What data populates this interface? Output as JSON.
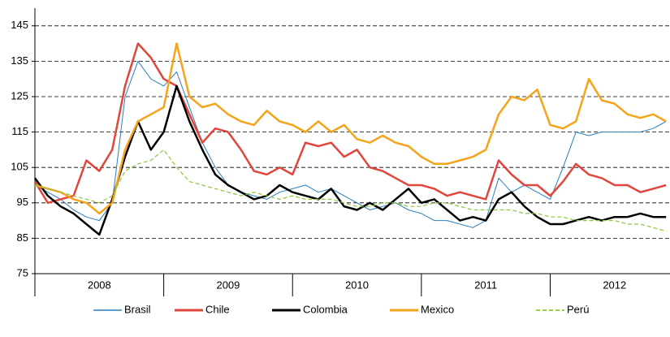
{
  "chart_data": {
    "type": "line",
    "x": [
      2008.0,
      2008.1,
      2008.2,
      2008.3,
      2008.4,
      2008.5,
      2008.6,
      2008.7,
      2008.8,
      2008.9,
      2009.0,
      2009.1,
      2009.2,
      2009.3,
      2009.4,
      2009.5,
      2009.6,
      2009.7,
      2009.8,
      2009.9,
      2010.0,
      2010.1,
      2010.2,
      2010.3,
      2010.4,
      2010.5,
      2010.6,
      2010.7,
      2010.8,
      2010.9,
      2011.0,
      2011.1,
      2011.2,
      2011.3,
      2011.4,
      2011.5,
      2011.6,
      2011.7,
      2011.8,
      2011.9,
      2012.0,
      2012.1,
      2012.2,
      2012.3,
      2012.4,
      2012.5,
      2012.6,
      2012.7,
      2012.8,
      2012.9
    ],
    "xlim": [
      2008,
      2012.93
    ],
    "xticks": [
      {
        "value": 2008.5,
        "label": "2008"
      },
      {
        "value": 2009.5,
        "label": "2009"
      },
      {
        "value": 2010.5,
        "label": "2010"
      },
      {
        "value": 2011.5,
        "label": "2011"
      },
      {
        "value": 2012.5,
        "label": "2012"
      }
    ],
    "ylim": [
      75,
      150
    ],
    "yticks": [
      75,
      85,
      95,
      105,
      115,
      125,
      135,
      145
    ],
    "grid": true,
    "legend": "bottom",
    "series": [
      {
        "name": "Brasil",
        "color": "#2a7fc0",
        "width": 1,
        "dashed": false,
        "values": [
          100,
          98,
          96,
          93,
          91,
          90,
          95,
          125,
          135,
          130,
          128,
          132,
          122,
          112,
          105,
          100,
          98,
          97,
          96,
          98,
          99,
          100,
          98,
          99,
          97,
          95,
          93,
          94,
          95,
          93,
          92,
          90,
          90,
          89,
          88,
          90,
          102,
          98,
          100,
          98,
          96,
          105,
          115,
          114,
          115,
          115,
          115,
          115,
          116,
          118
        ]
      },
      {
        "name": "Chile",
        "color": "#e0463c",
        "width": 2.5,
        "dashed": false,
        "values": [
          101,
          95,
          96,
          97,
          107,
          104,
          110,
          128,
          140,
          136,
          130,
          128,
          120,
          112,
          116,
          115,
          110,
          104,
          103,
          105,
          103,
          112,
          111,
          112,
          108,
          110,
          105,
          104,
          102,
          100,
          100,
          99,
          97,
          98,
          97,
          96,
          107,
          103,
          100,
          100,
          97,
          101,
          106,
          103,
          102,
          100,
          100,
          98,
          99,
          100
        ]
      },
      {
        "name": "Colombia",
        "color": "#000000",
        "width": 2.5,
        "dashed": false,
        "values": [
          102,
          97,
          94,
          92,
          89,
          86,
          96,
          108,
          118,
          110,
          115,
          128,
          118,
          110,
          103,
          100,
          98,
          96,
          97,
          100,
          98,
          97,
          96,
          99,
          94,
          93,
          95,
          93,
          96,
          99,
          95,
          96,
          93,
          90,
          91,
          90,
          96,
          98,
          94,
          91,
          89,
          89,
          90,
          91,
          90,
          91,
          91,
          92,
          91,
          91
        ]
      },
      {
        "name": "Mexico",
        "color": "#f5a31a",
        "width": 2.5,
        "dashed": false,
        "values": [
          100,
          99,
          98,
          96,
          95,
          92,
          95,
          110,
          118,
          120,
          122,
          140,
          125,
          122,
          123,
          120,
          118,
          117,
          121,
          118,
          117,
          115,
          118,
          115,
          117,
          113,
          112,
          114,
          112,
          111,
          108,
          106,
          106,
          107,
          108,
          110,
          120,
          125,
          124,
          127,
          117,
          116,
          118,
          130,
          124,
          123,
          120,
          119,
          120,
          118
        ]
      },
      {
        "name": "Perú",
        "color": "#8cc63f",
        "width": 1.2,
        "dashed": true,
        "values": [
          100,
          99,
          98,
          97,
          96,
          95,
          97,
          104,
          106,
          107,
          110,
          105,
          101,
          100,
          99,
          98,
          97,
          98,
          97,
          96,
          97,
          96,
          96,
          96,
          95,
          94,
          94,
          95,
          95,
          94,
          94,
          95,
          95,
          94,
          93,
          93,
          93,
          93,
          92,
          92,
          91,
          91,
          90,
          90,
          90,
          90,
          89,
          89,
          88,
          87
        ]
      }
    ]
  }
}
